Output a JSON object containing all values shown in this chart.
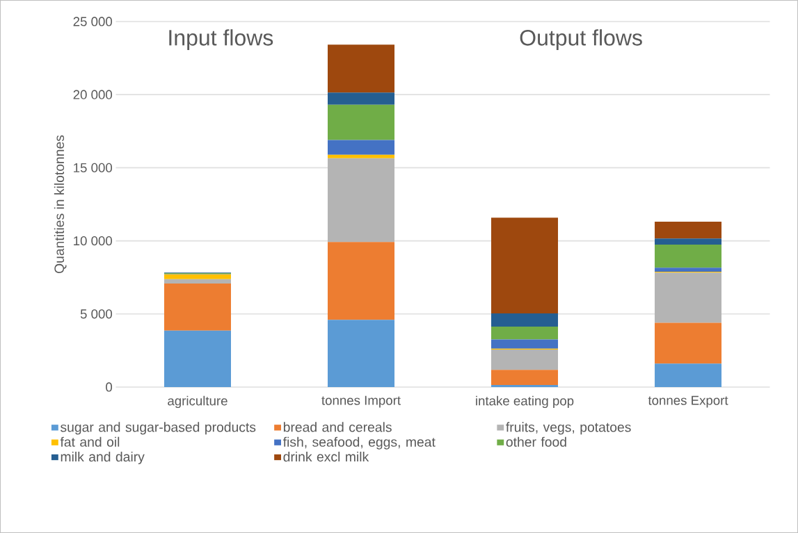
{
  "chart_data": {
    "type": "bar",
    "stacked": true,
    "ylabel": "Quantities in kilotonnes",
    "categories": [
      "agriculture",
      "tonnes Import",
      "intake eating pop",
      "tonnes Export"
    ],
    "series": [
      {
        "name": "sugar and sugar-based products",
        "color": "#5b9bd5",
        "values": [
          3860,
          4600,
          140,
          1600
        ]
      },
      {
        "name": "bread and cereals",
        "color": "#ed7d31",
        "values": [
          3220,
          5320,
          1030,
          2790
        ]
      },
      {
        "name": "fruits, vegs, potatoes",
        "color": "#b4b4b4",
        "values": [
          300,
          5730,
          1400,
          3440
        ]
      },
      {
        "name": "fat and oil",
        "color": "#ffc000",
        "values": [
          330,
          240,
          60,
          60
        ]
      },
      {
        "name": "fish, seafood, eggs, meat",
        "color": "#4472c4",
        "values": [
          30,
          1000,
          620,
          270
        ]
      },
      {
        "name": "other food",
        "color": "#70ad47",
        "values": [
          50,
          2420,
          880,
          1580
        ]
      },
      {
        "name": "milk and dairy",
        "color": "#255e91",
        "values": [
          40,
          830,
          910,
          420
        ]
      },
      {
        "name": "drink excl milk",
        "color": "#9e480e",
        "values": [
          0,
          3280,
          6540,
          1150
        ]
      }
    ],
    "ylim": [
      0,
      25000
    ],
    "yticks": [
      0,
      {
        "value": 5000,
        "label": "5 000"
      },
      {
        "value": 10000,
        "label": "10 000"
      },
      {
        "value": 15000,
        "label": "15 000"
      },
      {
        "value": 20000,
        "label": "20 000"
      },
      {
        "value": 25000,
        "label": "25 000"
      }
    ],
    "grid": "y",
    "legend": "bottom",
    "annotations": [
      "Input flows",
      "Output flows"
    ]
  }
}
